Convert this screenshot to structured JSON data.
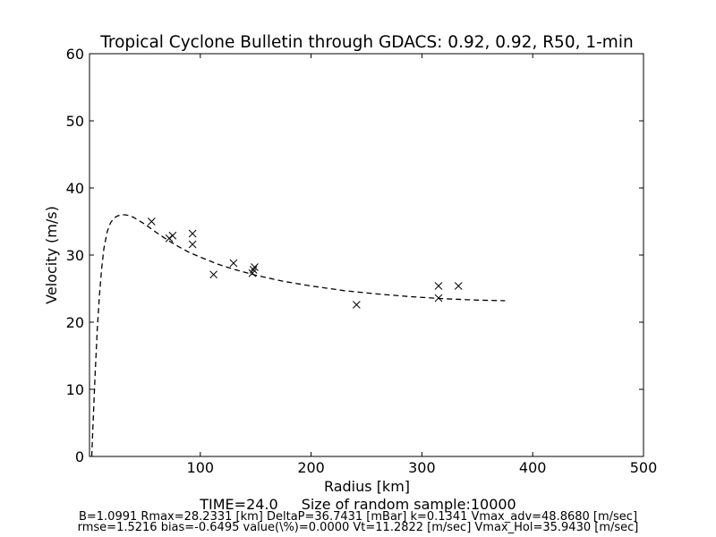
{
  "chart_data": {
    "type": "scatter",
    "title": "Tropical Cyclone Bulletin through GDACS: 0.92, 0.92, R50, 1-min",
    "xlabel": "Radius [km]",
    "ylabel": "Velocity (m/s)",
    "xlim": [
      0,
      500
    ],
    "ylim": [
      0,
      60
    ],
    "xticks": [
      100,
      200,
      300,
      400,
      500
    ],
    "xtick_labels": [
      "100",
      "200",
      "300",
      "400",
      "500"
    ],
    "yticks": [
      0,
      10,
      20,
      30,
      40,
      50,
      60
    ],
    "ytick_labels": [
      "0",
      "10",
      "20",
      "30",
      "40",
      "50",
      "60"
    ],
    "grid": false,
    "series": [
      {
        "style": "dashed-line",
        "x": [
          2,
          3,
          5,
          7,
          9,
          11,
          13,
          16,
          19,
          22,
          25,
          28,
          32,
          36,
          40,
          45,
          50,
          60,
          70,
          80,
          90,
          100,
          115,
          130,
          150,
          175,
          200,
          230,
          260,
          290,
          320,
          350,
          375
        ],
        "y": [
          0,
          4,
          12,
          19,
          24,
          28,
          31,
          33.5,
          34.8,
          35.5,
          35.8,
          36,
          36,
          35.9,
          35.6,
          35.1,
          34.6,
          33.4,
          32.3,
          31.3,
          30.4,
          29.7,
          28.7,
          27.9,
          27,
          26.1,
          25.4,
          24.7,
          24.2,
          23.8,
          23.5,
          23.3,
          23.2
        ]
      },
      {
        "style": "x-markers",
        "x": [
          56,
          72,
          75,
          93,
          93,
          112,
          130,
          147,
          148,
          149,
          241,
          315,
          315,
          333
        ],
        "y": [
          35.0,
          32.5,
          32.9,
          33.2,
          31.6,
          27.1,
          28.8,
          27.3,
          27.8,
          28.2,
          22.6,
          23.6,
          25.4,
          25.4
        ]
      }
    ]
  },
  "captions": {
    "time": "TIME=24.0",
    "sample": "Size of random sample:10000",
    "params_line1": "B=1.0991 Rmax=28.2331 [km]  DeltaP=36.7431 [mBar] k=0.1341 Vmax_adv=48.8680 [m/sec]",
    "params_line2": "rmse=1.5216 bias=-0.6495 value(\\%)=0.0000 Vt=11.2822 [m/sec] Vmax_Hol=35.9430 [m/sec]"
  }
}
